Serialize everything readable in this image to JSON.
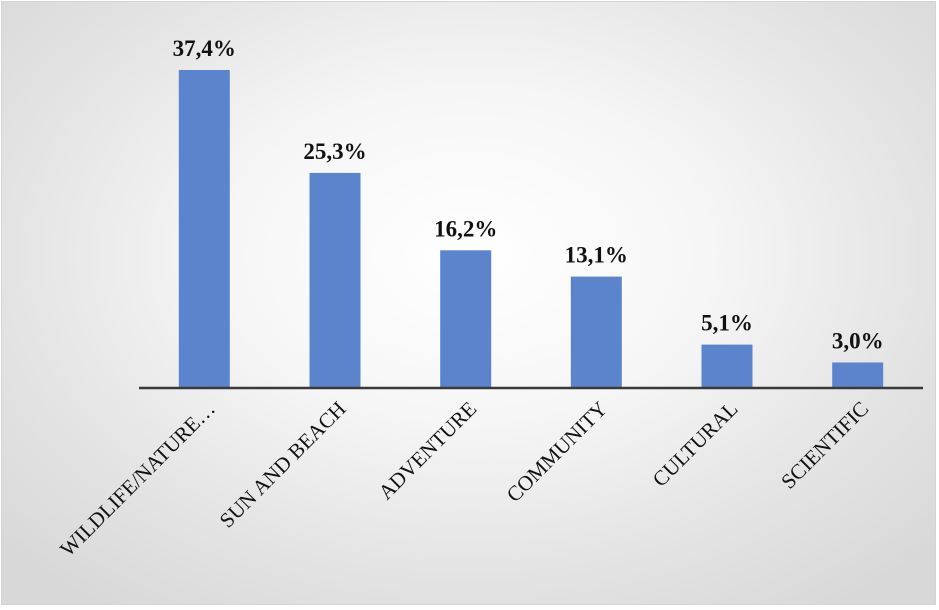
{
  "chart_data": {
    "type": "bar",
    "title": "",
    "xlabel": "",
    "ylabel": "",
    "categories": [
      "WILDLIFE/NATURE…",
      "SUN AND BEACH",
      "ADVENTURE",
      "COMMUNITY",
      "CULTURAL",
      "SCIENTIFIC"
    ],
    "values": [
      37.4,
      25.3,
      16.2,
      13.1,
      5.1,
      3.0
    ],
    "value_labels": [
      "37,4%",
      "25,3%",
      "16,2%",
      "13,1%",
      "5,1%",
      "3,0%"
    ],
    "ylim": [
      0,
      37.4
    ],
    "grid": false,
    "legend": "none",
    "bar_color": "#5b84cc",
    "axis_color": "#3a3a3a"
  }
}
